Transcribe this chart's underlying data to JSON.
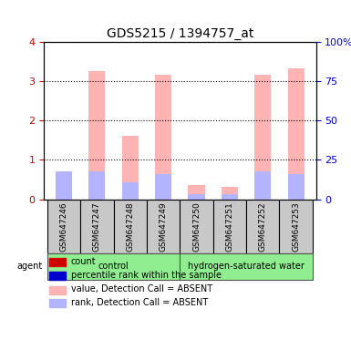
{
  "title": "GDS5215 / 1394757_at",
  "samples": [
    "GSM647246",
    "GSM647247",
    "GSM647248",
    "GSM647249",
    "GSM647250",
    "GSM647251",
    "GSM647252",
    "GSM647253"
  ],
  "groups": [
    {
      "name": "control",
      "color": "#90ee90",
      "samples": [
        0,
        1,
        2,
        3
      ]
    },
    {
      "name": "hydrogen-saturated water",
      "color": "#90ee90",
      "samples": [
        4,
        5,
        6,
        7
      ]
    }
  ],
  "values_absent": [
    0.27,
    3.27,
    1.62,
    3.17,
    0.35,
    0.32,
    3.17,
    3.32
  ],
  "rank_absent": [
    0.72,
    0.72,
    0.43,
    0.65,
    0.14,
    0.12,
    0.72,
    0.65
  ],
  "ylim": [
    0,
    4
  ],
  "yticks": [
    0,
    1,
    2,
    3,
    4
  ],
  "ytick_labels_right": [
    "0",
    "25",
    "50",
    "75",
    "100%"
  ],
  "left_axis_color": "#cc0000",
  "right_axis_color": "#0000cc",
  "bar_color_absent": "#ffb3b3",
  "rank_color_absent": "#b3b3ff",
  "legend_items": [
    {
      "color": "#cc0000",
      "label": "count"
    },
    {
      "color": "#0000cc",
      "label": "percentile rank within the sample"
    },
    {
      "color": "#ffb3b3",
      "label": "value, Detection Call = ABSENT"
    },
    {
      "color": "#b3b3ff",
      "label": "rank, Detection Call = ABSENT"
    }
  ],
  "agent_label": "agent",
  "figsize": [
    3.85,
    3.84
  ],
  "dpi": 100
}
